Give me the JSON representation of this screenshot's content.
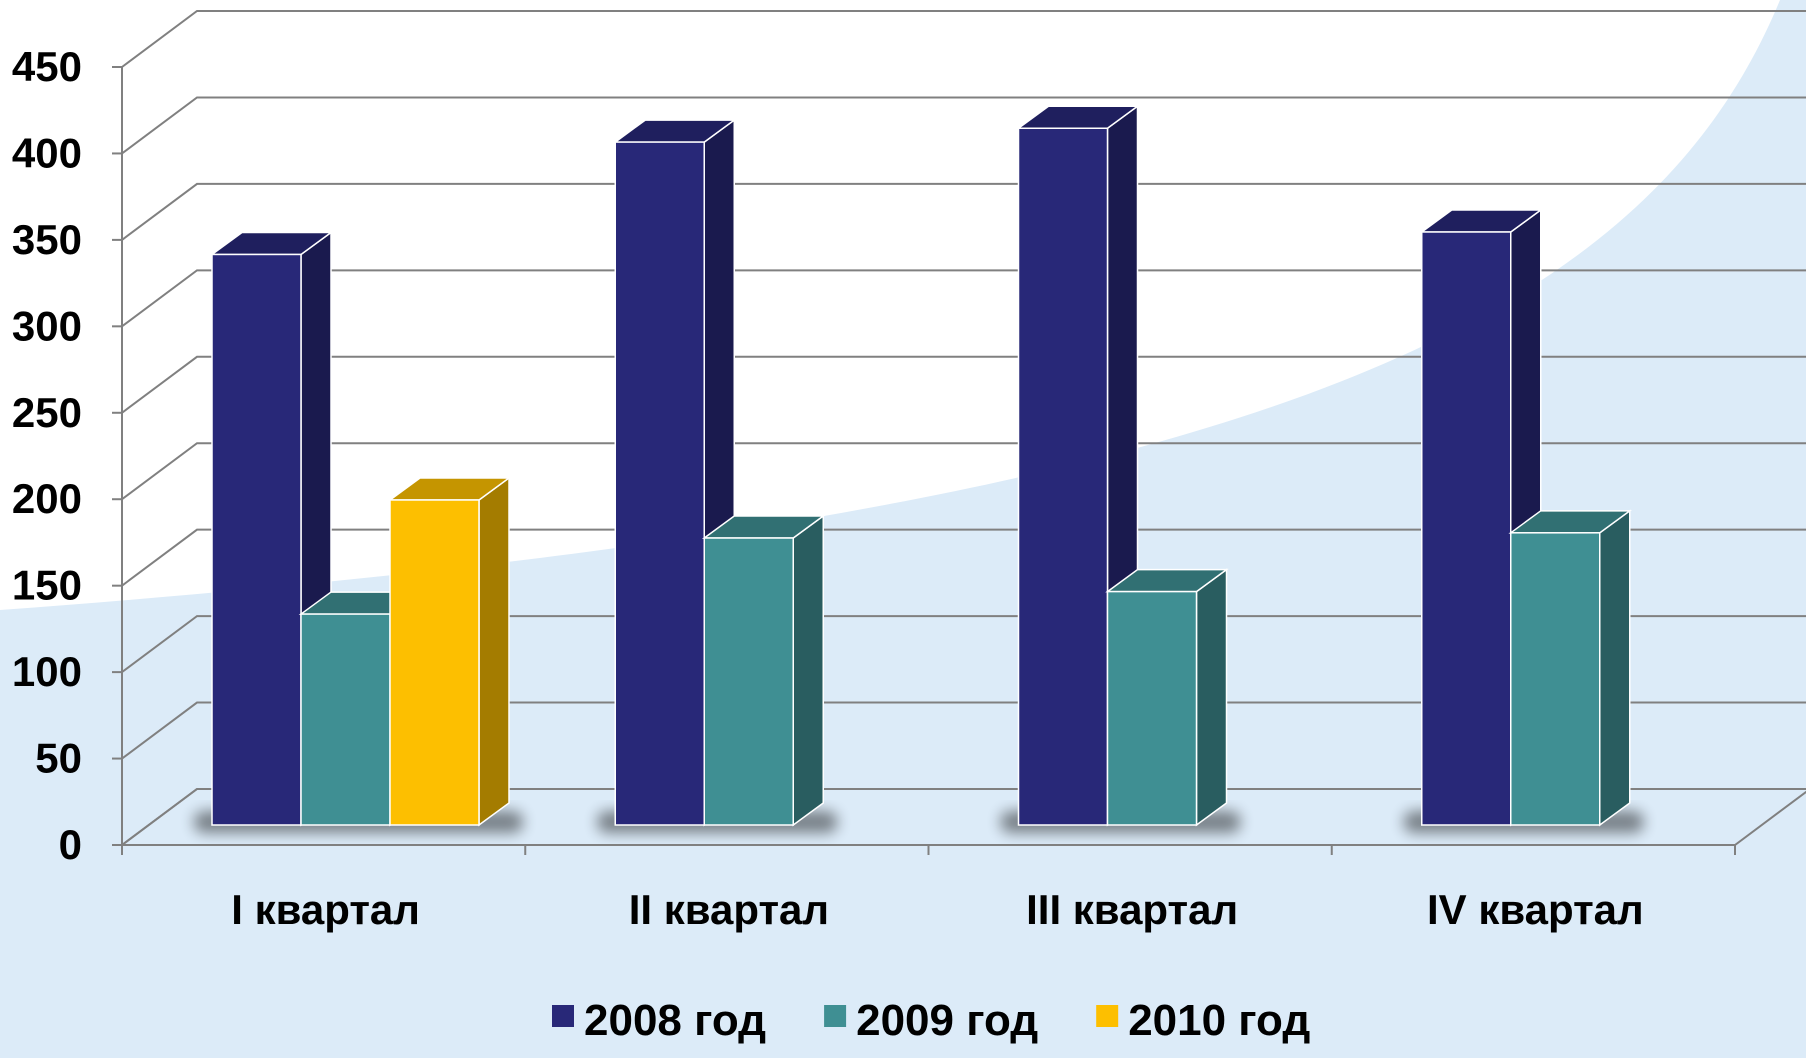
{
  "chart_data": {
    "type": "bar",
    "title": "",
    "xlabel": "",
    "ylabel": "",
    "categories": [
      "I квартал",
      "II квартал",
      "III квартал",
      "IV квартал"
    ],
    "series": [
      {
        "name": "2008 год",
        "values": [
          330,
          395,
          403,
          343
        ],
        "color": "#282878"
      },
      {
        "name": "2009 год",
        "values": [
          122,
          166,
          135,
          169
        ],
        "color": "#3f8f93"
      },
      {
        "name": "2010 год",
        "values": [
          188,
          null,
          null,
          null
        ],
        "color": "#fdbf00"
      }
    ],
    "ylim": [
      0,
      450
    ],
    "yticks": [
      0,
      50,
      100,
      150,
      200,
      250,
      300,
      350,
      400,
      450
    ],
    "grid": true,
    "legend": "bottom",
    "style": "3d-column"
  }
}
